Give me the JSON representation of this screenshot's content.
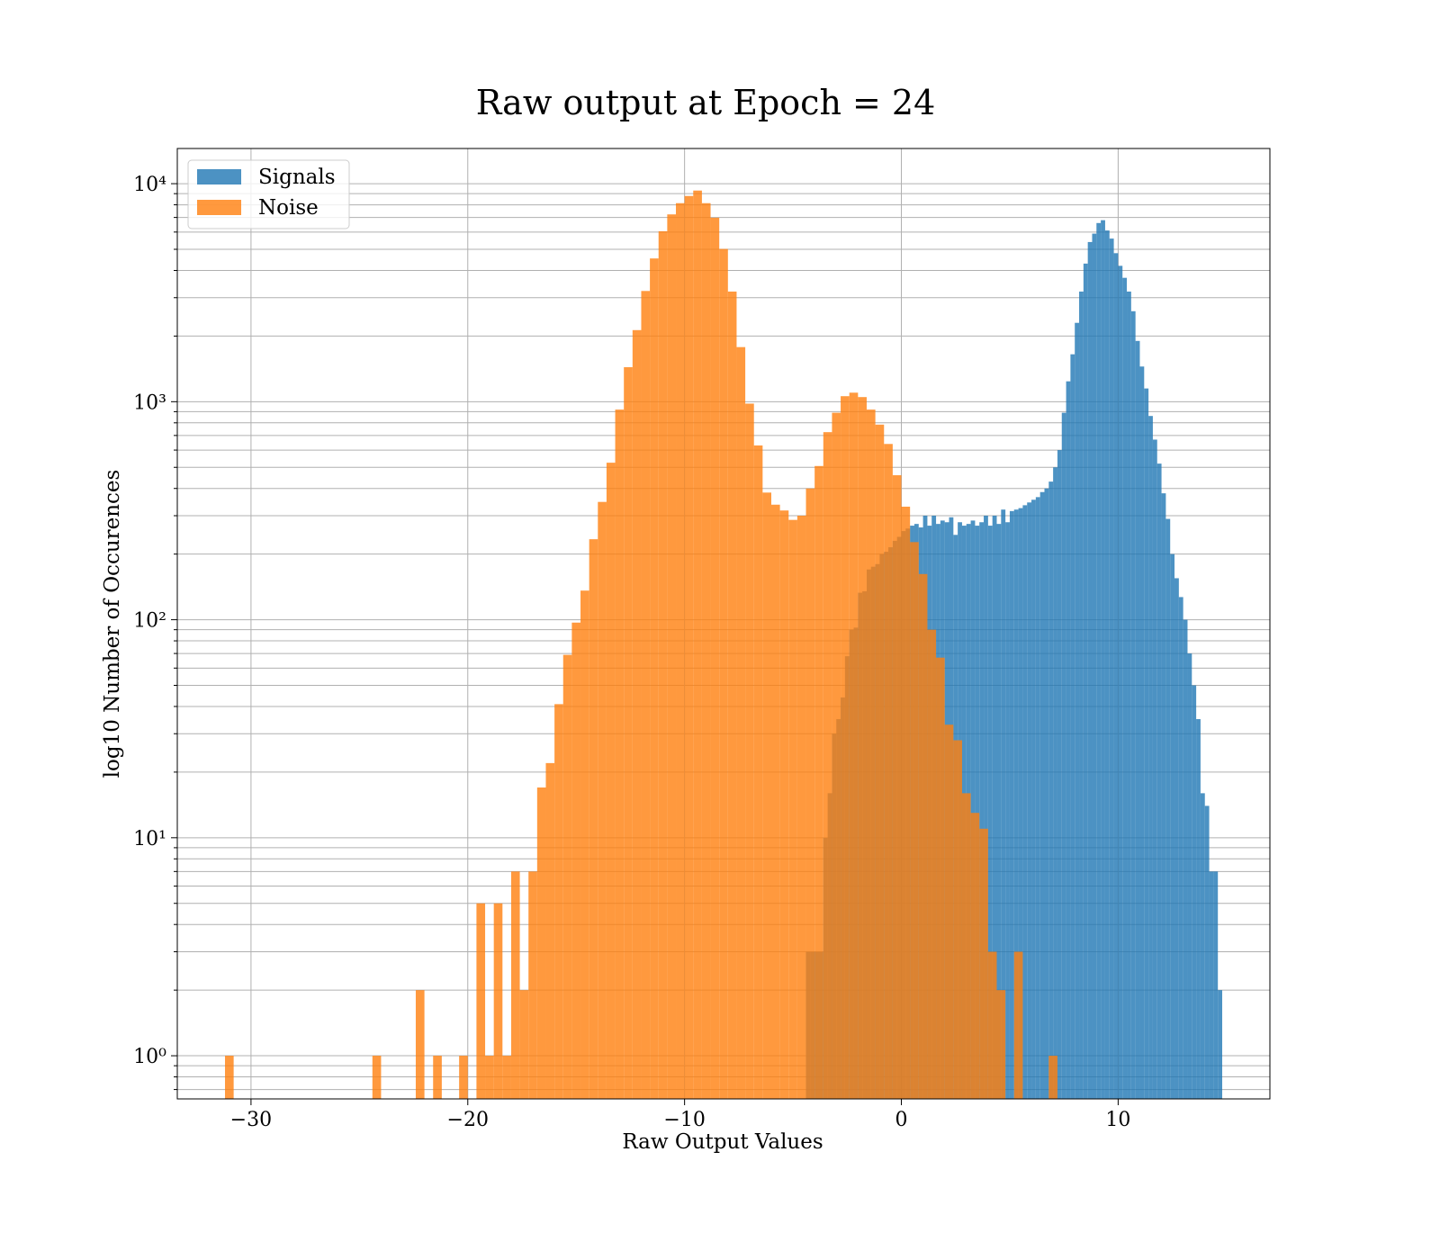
{
  "chart_data": {
    "type": "histogram",
    "title": "Raw output at Epoch = 24",
    "xlabel": "Raw Output Values",
    "ylabel": "log10 Number of Occurences",
    "yscale": "log",
    "grid": true,
    "legend": "upper left",
    "alpha": 0.8,
    "xlim": [
      -33.4,
      17.0
    ],
    "ylim": [
      0.634,
      14500
    ],
    "xticks": [
      {
        "value": -30,
        "label": "−30"
      },
      {
        "value": -20,
        "label": "−20"
      },
      {
        "value": -10,
        "label": "−10"
      },
      0,
      10
    ],
    "yticks": [
      {
        "value": 1,
        "label": "10⁰"
      },
      {
        "value": 10,
        "label": "10¹"
      },
      {
        "value": 100,
        "label": "10²"
      },
      {
        "value": 1000,
        "label": "10³"
      },
      {
        "value": 10000,
        "label": "10⁴"
      }
    ],
    "yminorticks": [
      0.7,
      0.8,
      0.9,
      2,
      3,
      4,
      5,
      6,
      7,
      8,
      9,
      20,
      30,
      40,
      50,
      60,
      70,
      80,
      90,
      200,
      300,
      400,
      500,
      600,
      700,
      800,
      900,
      2000,
      3000,
      4000,
      5000,
      6000,
      7000,
      8000,
      9000
    ],
    "series": [
      {
        "name": "Signals",
        "color": "#1f77b4",
        "bins": [
          -4.4,
          -4.2,
          -4.0,
          -3.8,
          -3.6,
          -3.4,
          -3.2,
          -3.0,
          -2.8,
          -2.6,
          -2.4,
          -2.2,
          -2.0,
          -1.8,
          -1.6,
          -1.4,
          -1.2,
          -1.0,
          -0.8,
          -0.6,
          -0.4,
          -0.2,
          0.0,
          0.2,
          0.4,
          0.6,
          0.8,
          1.0,
          1.2,
          1.4,
          1.6,
          1.8,
          2.0,
          2.2,
          2.4,
          2.6,
          2.8,
          3.0,
          3.2,
          3.4,
          3.6,
          3.8,
          4.0,
          4.2,
          4.4,
          4.6,
          4.8,
          5.0,
          5.2,
          5.4,
          5.6,
          5.8,
          6.0,
          6.2,
          6.4,
          6.6,
          6.8,
          7.0,
          7.2,
          7.4,
          7.6,
          7.8,
          8.0,
          8.2,
          8.4,
          8.6,
          8.8,
          9.0,
          9.2,
          9.4,
          9.6,
          9.8,
          10.0,
          10.2,
          10.4,
          10.6,
          10.8,
          11.0,
          11.2,
          11.4,
          11.6,
          11.8,
          12.0,
          12.2,
          12.4,
          12.6,
          12.8,
          13.0,
          13.2,
          13.4,
          13.6,
          13.8,
          14.0,
          14.2,
          14.4,
          14.6,
          14.8
        ],
        "values": [
          3,
          3,
          3,
          3,
          10,
          16,
          30,
          35,
          44,
          68,
          90,
          92,
          133,
          135,
          170,
          175,
          180,
          200,
          205,
          215,
          230,
          240,
          255,
          262,
          270,
          275,
          265,
          300,
          270,
          300,
          275,
          285,
          280,
          295,
          245,
          280,
          270,
          275,
          285,
          270,
          280,
          300,
          270,
          300,
          275,
          320,
          280,
          315,
          320,
          325,
          335,
          345,
          355,
          365,
          385,
          400,
          430,
          500,
          600,
          890,
          1240,
          1650,
          2300,
          3200,
          4300,
          5400,
          5900,
          6600,
          6800,
          6100,
          5600,
          4800,
          4200,
          3700,
          3200,
          2600,
          1900,
          1450,
          1150,
          860,
          670,
          520,
          380,
          290,
          200,
          155,
          127,
          100,
          70,
          50,
          35,
          16,
          14,
          7,
          7,
          2
        ]
      },
      {
        "name": "Noise",
        "color": "#ff7f0e",
        "bins": [
          -31.2,
          -30.8,
          -30.4,
          -30.0,
          -29.6,
          -29.2,
          -28.8,
          -28.4,
          -28.0,
          -27.6,
          -27.2,
          -26.8,
          -26.4,
          -26.0,
          -25.6,
          -25.2,
          -24.8,
          -24.4,
          -24.0,
          -23.6,
          -23.2,
          -22.8,
          -22.4,
          -22.0,
          -21.6,
          -21.2,
          -20.8,
          -20.4,
          -20.0,
          -19.6,
          -19.2,
          -18.8,
          -18.4,
          -18.0,
          -17.6,
          -17.2,
          -16.8,
          -16.4,
          -16.0,
          -15.6,
          -15.2,
          -14.8,
          -14.4,
          -14.0,
          -13.6,
          -13.2,
          -12.8,
          -12.4,
          -12.0,
          -11.6,
          -11.2,
          -10.8,
          -10.4,
          -10.0,
          -9.6,
          -9.2,
          -8.8,
          -8.4,
          -8.0,
          -7.6,
          -7.2,
          -6.8,
          -6.4,
          -6.0,
          -5.6,
          -5.2,
          -4.8,
          -4.4,
          -4.0,
          -3.6,
          -3.2,
          -2.8,
          -2.4,
          -2.0,
          -1.6,
          -1.2,
          -0.8,
          -0.4,
          0.0,
          0.4,
          0.8,
          1.2,
          1.6,
          2.0,
          2.4,
          2.8,
          3.2,
          3.6,
          4.0,
          4.4,
          4.8,
          5.2,
          5.6,
          6.0,
          6.4,
          6.8,
          7.2
        ],
        "values": [
          1,
          0,
          0,
          0,
          0,
          0,
          0,
          0,
          0,
          0,
          0,
          0,
          0,
          0,
          0,
          0,
          0,
          1,
          0,
          0,
          0,
          0,
          2,
          0,
          1,
          0,
          0,
          1,
          0,
          5,
          1,
          5,
          1,
          7,
          2,
          7,
          17,
          22,
          41,
          69,
          97,
          136,
          234,
          347,
          525,
          920,
          1440,
          2130,
          3220,
          4540,
          6050,
          7230,
          8140,
          8780,
          9300,
          8140,
          6980,
          5020,
          3200,
          1780,
          980,
          630,
          383,
          337,
          317,
          287,
          300,
          400,
          507,
          725,
          890,
          1060,
          1100,
          1050,
          920,
          785,
          640,
          460,
          330,
          227,
          162,
          90,
          67,
          33,
          28,
          16,
          13,
          11,
          3,
          2,
          0,
          3,
          0,
          0,
          0,
          1
        ]
      }
    ]
  }
}
